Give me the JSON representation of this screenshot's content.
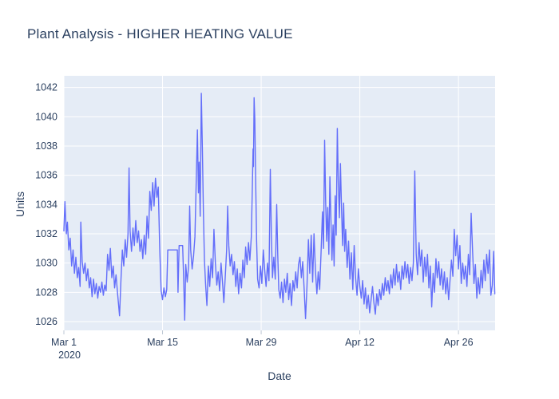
{
  "page": {
    "background": "#ffffff"
  },
  "chart_data": {
    "type": "line",
    "title": "Plant Analysis - HIGHER HEATING VALUE",
    "xlabel": "Date",
    "ylabel": "Units",
    "grid": true,
    "legend": "none",
    "xlim": [
      0,
      61.2
    ],
    "ylim": [
      1025.4,
      1042.8
    ],
    "x_ticks": [
      {
        "day": 0,
        "label": "Mar 1",
        "sublabel": "2020"
      },
      {
        "day": 14,
        "label": "Mar 15"
      },
      {
        "day": 28,
        "label": "Mar 29"
      },
      {
        "day": 42,
        "label": "Apr 12"
      },
      {
        "day": 56,
        "label": "Apr 26"
      }
    ],
    "y_ticks": [
      1026,
      1028,
      1030,
      1032,
      1034,
      1036,
      1038,
      1040,
      1042
    ],
    "colors": {
      "line": "#636efa",
      "plot_bg": "#e5ecf6",
      "grid": "#ffffff",
      "text": "#2a3f5f",
      "tick_mark": "#bcc7d4"
    },
    "series": [
      {
        "name": "HIGHER HEATING VALUE",
        "x_days": [
          0,
          0.15,
          0.35,
          0.5,
          0.7,
          0.9,
          1.1,
          1.3,
          1.5,
          1.7,
          1.9,
          2.1,
          2.3,
          2.4,
          2.6,
          2.8,
          3,
          3.2,
          3.4,
          3.6,
          3.8,
          4,
          4.2,
          4.4,
          4.6,
          4.8,
          5,
          5.2,
          5.4,
          5.6,
          5.8,
          6,
          6.2,
          6.4,
          6.6,
          6.8,
          7,
          7.2,
          7.4,
          7.6,
          7.9,
          8.1,
          8.3,
          8.5,
          8.7,
          8.9,
          9.1,
          9.25,
          9.4,
          9.6,
          9.8,
          10,
          10.2,
          10.4,
          10.6,
          10.8,
          11,
          11.2,
          11.4,
          11.6,
          11.8,
          12,
          12.2,
          12.4,
          12.6,
          12.8,
          13,
          13.2,
          13.4,
          13.6,
          13.8,
          14,
          14.2,
          14.4,
          14.6,
          14.75,
          16.1,
          16.2,
          16.35,
          16.85,
          17,
          17.15,
          17.3,
          17.5,
          17.7,
          17.85,
          18,
          18.2,
          18.4,
          18.6,
          18.8,
          18.95,
          19.1,
          19.2,
          19.35,
          19.5,
          19.65,
          19.8,
          19.95,
          20.1,
          20.3,
          20.5,
          20.7,
          20.9,
          21.1,
          21.3,
          21.5,
          21.7,
          21.9,
          22.1,
          22.3,
          22.5,
          22.7,
          22.9,
          23.1,
          23.25,
          23.4,
          23.6,
          23.8,
          24,
          24.2,
          24.4,
          24.6,
          24.8,
          25,
          25.2,
          25.4,
          25.6,
          25.8,
          26,
          26.2,
          26.4,
          26.6,
          26.75,
          26.85,
          26.9,
          27,
          27.1,
          27.2,
          27.35,
          27.5,
          27.7,
          27.9,
          28.1,
          28.3,
          28.5,
          28.7,
          28.9,
          29.1,
          29.3,
          29.45,
          29.6,
          29.8,
          30,
          30.2,
          30.35,
          30.5,
          30.7,
          30.9,
          31.1,
          31.3,
          31.5,
          31.7,
          31.9,
          32.1,
          32.3,
          32.5,
          32.7,
          32.9,
          33.1,
          33.3,
          33.5,
          33.7,
          33.9,
          34.1,
          34.3,
          34.5,
          34.7,
          34.9,
          35.1,
          35.3,
          35.5,
          35.7,
          35.9,
          36.1,
          36.3,
          36.5,
          36.7,
          36.85,
          37,
          37.15,
          37.3,
          37.45,
          37.6,
          37.75,
          37.9,
          38.05,
          38.2,
          38.35,
          38.5,
          38.65,
          38.8,
          38.95,
          39.1,
          39.25,
          39.4,
          39.55,
          39.7,
          39.85,
          40,
          40.2,
          40.4,
          40.6,
          40.8,
          41,
          41.2,
          41.4,
          41.6,
          41.8,
          42,
          42.2,
          42.4,
          42.6,
          42.8,
          43,
          43.2,
          43.4,
          43.6,
          43.8,
          44,
          44.2,
          44.4,
          44.6,
          44.8,
          45,
          45.2,
          45.4,
          45.6,
          45.8,
          46,
          46.2,
          46.4,
          46.6,
          46.8,
          47,
          47.2,
          47.4,
          47.6,
          47.8,
          48,
          48.2,
          48.4,
          48.6,
          48.8,
          49,
          49.2,
          49.4,
          49.6,
          49.8,
          50,
          50.2,
          50.4,
          50.6,
          50.8,
          51,
          51.2,
          51.4,
          51.6,
          51.8,
          52,
          52.2,
          52.4,
          52.6,
          52.8,
          53,
          53.2,
          53.4,
          53.6,
          53.8,
          54,
          54.2,
          54.4,
          54.6,
          54.8,
          55,
          55.2,
          55.4,
          55.6,
          55.8,
          56,
          56.2,
          56.4,
          56.6,
          56.8,
          57,
          57.2,
          57.4,
          57.6,
          57.8,
          58,
          58.2,
          58.4,
          58.6,
          58.8,
          59,
          59.2,
          59.4,
          59.6,
          59.8,
          60,
          60.2,
          60.4,
          60.6,
          60.8,
          61,
          61.15
        ],
        "values": [
          1032.2,
          1034.2,
          1032,
          1032.8,
          1030.9,
          1031.7,
          1029.8,
          1030.9,
          1029.3,
          1030.4,
          1029,
          1029.7,
          1028.4,
          1032.8,
          1030.1,
          1029.3,
          1030,
          1028.8,
          1029.6,
          1028.3,
          1029,
          1027.7,
          1028.9,
          1027.9,
          1028.6,
          1027.6,
          1028.4,
          1028,
          1028.7,
          1027.8,
          1028.5,
          1028.1,
          1030.6,
          1029.5,
          1031,
          1029,
          1029.8,
          1028.3,
          1029.2,
          1028,
          1026.4,
          1028.9,
          1030.9,
          1029.8,
          1031.6,
          1030.4,
          1032,
          1036.5,
          1032.2,
          1030.8,
          1032.4,
          1031.2,
          1032.9,
          1031.4,
          1032.2,
          1030.8,
          1031.6,
          1030.3,
          1031.9,
          1030.6,
          1033.2,
          1031.7,
          1034.9,
          1033.6,
          1035.5,
          1033.9,
          1035.8,
          1034.5,
          1035.2,
          1031,
          1028.1,
          1027.5,
          1028.3,
          1027.7,
          1028.2,
          1030.9,
          1030.9,
          1028,
          1031.2,
          1031.2,
          1028.9,
          1026.1,
          1029.9,
          1028.7,
          1029.8,
          1033.9,
          1030.9,
          1029.6,
          1030.5,
          1031.8,
          1036,
          1039.1,
          1034.8,
          1036.9,
          1033.2,
          1041.6,
          1037.9,
          1033.5,
          1030.2,
          1028.6,
          1027.1,
          1029.8,
          1028.4,
          1030.3,
          1029,
          1032.3,
          1030,
          1028.5,
          1029.4,
          1028.1,
          1030,
          1028.8,
          1027.3,
          1029.1,
          1030.9,
          1033.9,
          1031.2,
          1029.8,
          1030.6,
          1029.2,
          1030.1,
          1028.4,
          1029.6,
          1027.9,
          1029.3,
          1028.3,
          1030.2,
          1029,
          1031.1,
          1029.9,
          1031.4,
          1030.2,
          1031.8,
          1035.2,
          1037.8,
          1036.6,
          1041.3,
          1039.8,
          1036.2,
          1031.6,
          1028.9,
          1028.3,
          1029.8,
          1028.6,
          1030.9,
          1029.5,
          1028.4,
          1030,
          1028.8,
          1036.4,
          1031.7,
          1029,
          1030.4,
          1028.9,
          1034,
          1030.6,
          1028.2,
          1027.6,
          1028.7,
          1027.3,
          1028.9,
          1028,
          1029.3,
          1027.5,
          1028.6,
          1027.1,
          1028.8,
          1028.1,
          1029.4,
          1028.3,
          1029.9,
          1030.4,
          1029,
          1030.1,
          1028.2,
          1026.2,
          1028.4,
          1031.6,
          1029.3,
          1031.9,
          1028.7,
          1032,
          1029.5,
          1027.9,
          1029.4,
          1028.2,
          1030.8,
          1033.5,
          1031,
          1038.4,
          1034.2,
          1031.5,
          1033.8,
          1030.6,
          1035.9,
          1033,
          1030.2,
          1032.6,
          1029.8,
          1034.6,
          1031.9,
          1039.2,
          1035.4,
          1033.1,
          1036.8,
          1033.9,
          1031.2,
          1034.1,
          1030.8,
          1032.3,
          1029.7,
          1031.5,
          1028.9,
          1030.7,
          1028.2,
          1031.2,
          1029,
          1027.8,
          1029.6,
          1028.4,
          1027.6,
          1028.8,
          1027.2,
          1028.3,
          1026.9,
          1027.8,
          1026.6,
          1027.5,
          1028.4,
          1027.3,
          1026.5,
          1027.9,
          1027.1,
          1028.2,
          1027.5,
          1028.6,
          1027.8,
          1029,
          1028.1,
          1028.8,
          1027.9,
          1029.2,
          1028.3,
          1029.6,
          1028.5,
          1029.9,
          1028.7,
          1029.4,
          1028.2,
          1029.8,
          1028.9,
          1030.1,
          1029,
          1029.9,
          1028.6,
          1029.7,
          1028.8,
          1030,
          1036.3,
          1030.6,
          1029.2,
          1031.4,
          1029.8,
          1030.9,
          1028.7,
          1030.4,
          1029.1,
          1030.6,
          1028.3,
          1029.8,
          1027,
          1029.3,
          1028,
          1030.3,
          1029,
          1030.1,
          1028.5,
          1029.6,
          1028.2,
          1029.4,
          1027.9,
          1029,
          1027.5,
          1028.8,
          1030.2,
          1029.1,
          1032.3,
          1030.5,
          1031.9,
          1029.6,
          1031.2,
          1028.6,
          1030,
          1028.9,
          1029.8,
          1028.4,
          1030.6,
          1029.2,
          1033.4,
          1030.8,
          1028.6,
          1029.9,
          1027.6,
          1029,
          1027.9,
          1029.5,
          1028.3,
          1030.2,
          1028.8,
          1030.6,
          1029.3,
          1030.9,
          1027.8,
          1028.5,
          1030.8,
          1027.9
        ]
      }
    ]
  }
}
